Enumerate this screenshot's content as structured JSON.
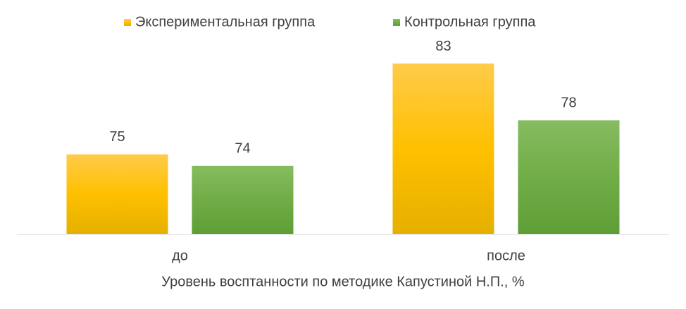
{
  "chart_data": {
    "type": "bar",
    "x_label": "Уровень восптанности по методике Капустиной Н.П., %",
    "categories": [
      "до",
      "после"
    ],
    "series": [
      {
        "name": "Экспериментальная группа",
        "color": "#ffc000",
        "values": [
          75,
          83
        ]
      },
      {
        "name": "Контрольная группа",
        "color": "#70ad47",
        "values": [
          74,
          78
        ]
      }
    ],
    "ylim": [
      68,
      86
    ],
    "legend": "top"
  }
}
